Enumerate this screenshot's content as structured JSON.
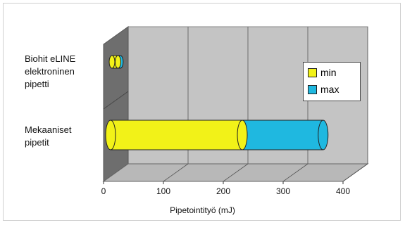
{
  "chart_data": {
    "type": "bar",
    "orientation": "horizontal",
    "categories": [
      "Biohit eLINE\nelektroninen\npipetti",
      "Mekaaniset\npipetit"
    ],
    "series": [
      {
        "name": "min",
        "values": [
          10,
          220
        ],
        "color": "#f2f218"
      },
      {
        "name": "max",
        "values": [
          4,
          135
        ],
        "color": "#1fb8e0"
      }
    ],
    "stacked": true,
    "xlabel": "Pipetointityö (mJ)",
    "xlim": [
      0,
      400
    ],
    "x_ticks": [
      "0",
      "100",
      "200",
      "300",
      "400"
    ],
    "grid": true,
    "legend_position": "right",
    "style": "3d-cylinder",
    "wall_color": "#c4c4c4",
    "side_wall_color": "#6e6e6e"
  }
}
